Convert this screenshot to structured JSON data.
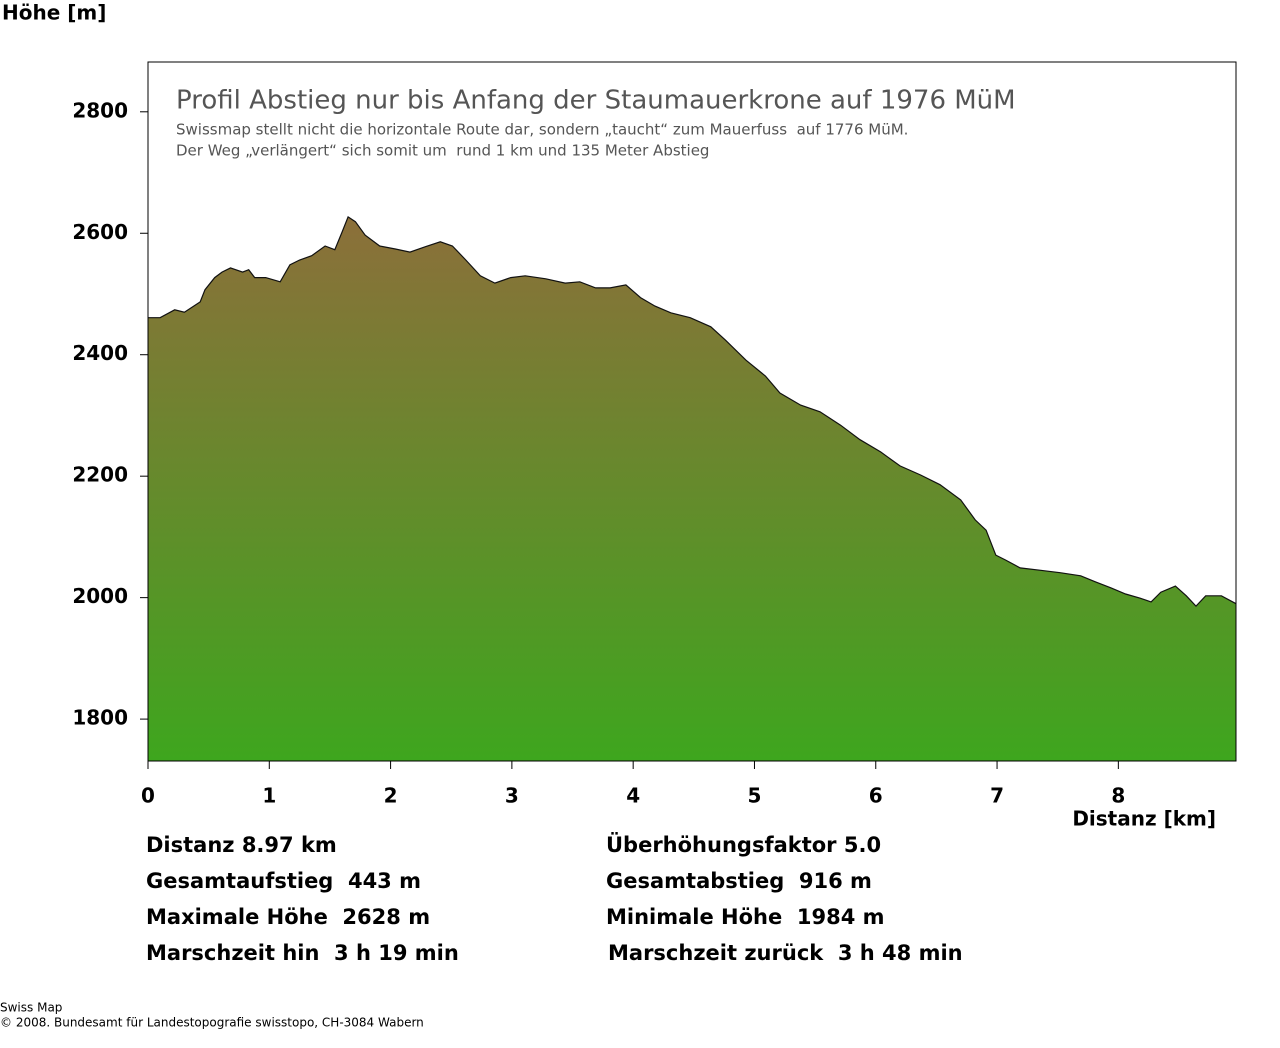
{
  "chart_data": {
    "type": "area",
    "y_label": "Höhe [m]",
    "x_label": "Distanz [km]",
    "title": "Profil Abstieg nur bis Anfang der Staumauerkrone auf 1976 MüM",
    "subtitle": [
      "Swissmap stellt nicht die horizontale Route dar, sondern „taucht“ zum Mauerfuss  auf 1776 MüM.",
      "Der Weg „verlängert“ sich somit um  rund 1 km und 135 Meter Abstieg"
    ],
    "gradient": [
      "#8c6f3a",
      "#3ea61e"
    ],
    "x": [
      0,
      0.1,
      0.22,
      0.3,
      0.43,
      0.47,
      0.55,
      0.61,
      0.68,
      0.78,
      0.83,
      0.88,
      0.97,
      1.09,
      1.17,
      1.25,
      1.35,
      1.46,
      1.54,
      1.6,
      1.65,
      1.71,
      1.79,
      1.91,
      2.04,
      2.16,
      2.29,
      2.41,
      2.51,
      2.62,
      2.74,
      2.86,
      2.99,
      3.11,
      3.28,
      3.44,
      3.56,
      3.69,
      3.81,
      3.94,
      4.06,
      4.18,
      4.31,
      4.47,
      4.64,
      4.76,
      4.93,
      5.09,
      5.21,
      5.38,
      5.54,
      5.71,
      5.87,
      6.04,
      6.2,
      6.37,
      6.53,
      6.7,
      6.82,
      6.91,
      6.99,
      7.07,
      7.19,
      7.36,
      7.52,
      7.69,
      7.81,
      7.94,
      8.06,
      8.18,
      8.27,
      8.35,
      8.47,
      8.56,
      8.64,
      8.72,
      8.85,
      8.97
    ],
    "values": [
      2461,
      2461,
      2474,
      2470,
      2487,
      2507,
      2527,
      2536,
      2543,
      2536,
      2540,
      2527,
      2527,
      2520,
      2548,
      2556,
      2563,
      2579,
      2573,
      2602,
      2627,
      2619,
      2597,
      2579,
      2574,
      2569,
      2578,
      2586,
      2579,
      2556,
      2530,
      2518,
      2527,
      2530,
      2525,
      2518,
      2520,
      2510,
      2510,
      2515,
      2494,
      2480,
      2469,
      2461,
      2446,
      2424,
      2391,
      2365,
      2337,
      2317,
      2306,
      2284,
      2260,
      2240,
      2217,
      2202,
      2186,
      2161,
      2128,
      2111,
      2070,
      2062,
      2049,
      2045,
      2041,
      2036,
      2026,
      2016,
      2006,
      1999,
      1993,
      2009,
      2019,
      2003,
      1986,
      2003,
      2003,
      1990
    ],
    "xlim": [
      0,
      8.97
    ],
    "ylim": [
      1731,
      2882
    ],
    "xticks": [
      0,
      1,
      2,
      3,
      4,
      5,
      6,
      7,
      8
    ],
    "yticks": [
      1800,
      2000,
      2200,
      2400,
      2600,
      2800
    ]
  },
  "stats": [
    [
      "Distanz 8.97 km",
      "Überhöhungsfaktor 5.0"
    ],
    [
      "Gesamtaufstieg  443 m",
      "Gesamtabstieg  916 m"
    ],
    [
      "Maximale Höhe  2628 m",
      "Minimale Höhe  1984 m"
    ],
    [
      "Marschzeit hin  3 h 19 min",
      "Marschzeit zurück  3 h 48 min"
    ]
  ],
  "footer": [
    "Swiss Map",
    "© 2008. Bundesamt für Landestopografie swisstopo, CH-3084 Wabern"
  ]
}
